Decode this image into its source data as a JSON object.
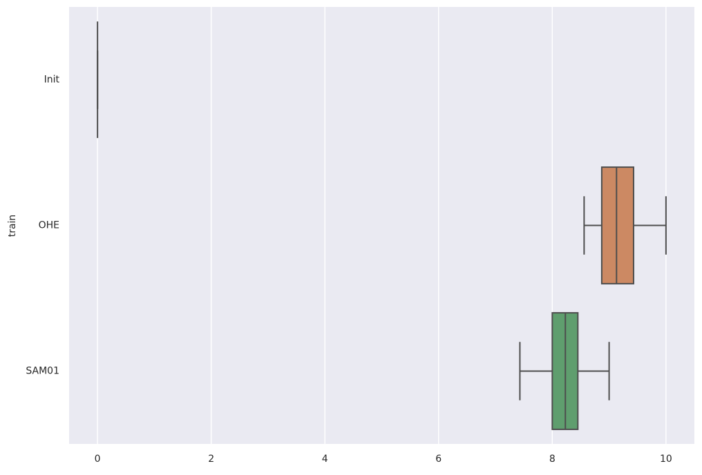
{
  "chart_data": {
    "type": "boxplot",
    "orientation": "horizontal",
    "ylabel": "train",
    "categories": [
      "Init",
      "OHE",
      "SAM01"
    ],
    "colors": [
      "#5875a4",
      "#cc8963",
      "#5f9e6e"
    ],
    "min": [
      0,
      8.56,
      7.43
    ],
    "q1": [
      0,
      8.87,
      8.0
    ],
    "median": [
      0,
      9.13,
      8.23
    ],
    "q3": [
      0,
      9.43,
      8.45
    ],
    "max": [
      0,
      10.0,
      9.0
    ],
    "xlim": [
      -0.5,
      10.5
    ],
    "xticks": [
      0,
      2,
      4,
      6,
      8,
      10
    ],
    "grid": true
  }
}
